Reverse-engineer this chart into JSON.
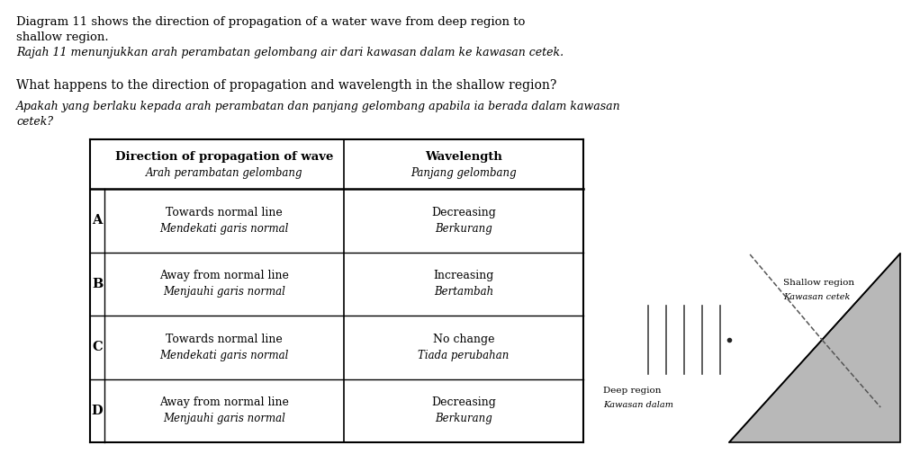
{
  "title_en": "Diagram 11 shows the direction of propagation of a water wave from deep region to\nshallow region.",
  "title_ms": "Rajah 11 menunjukkan arah perambatan gelombang air dari kawasan dalam ke kawasan cetek.",
  "question_en": "What happens to the direction of propagation and wavelength in the shallow region?",
  "question_ms": "Apakah yang berlaku kepada arah perambatan dan panjang gelombang apabila ia berada dalam kawasan\ncetek?",
  "col1_header_en": "Direction of propagation of wave",
  "col1_header_ms": "Arah perambatan gelombang",
  "col2_header_en": "Wavelength",
  "col2_header_ms": "Panjang gelombang",
  "rows": [
    {
      "label": "A",
      "col1_en": "Towards normal line",
      "col1_ms": "Mendekati garis normal",
      "col2_en": "Decreasing",
      "col2_ms": "Berkurang"
    },
    {
      "label": "B",
      "col1_en": "Away from normal line",
      "col1_ms": "Menjauhi garis normal",
      "col2_en": "Increasing",
      "col2_ms": "Bertambah"
    },
    {
      "label": "C",
      "col1_en": "Towards normal line",
      "col1_ms": "Mendekati garis normal",
      "col2_en": "No change",
      "col2_ms": "Tiada perubahan"
    },
    {
      "label": "D",
      "col1_en": "Away from normal line",
      "col1_ms": "Menjauhi garis normal",
      "col2_en": "Decreasing",
      "col2_ms": "Berkurang"
    }
  ],
  "diagram_deep_label_en": "Deep region",
  "diagram_deep_label_ms": "Kawasan dalam",
  "diagram_shallow_label_en": "Shallow region",
  "diagram_shallow_label_ms": "Kawasan cetek",
  "bg_color": "#ffffff",
  "table_line_color": "#000000",
  "diagram_fill_color": "#b8b8b8",
  "text_color": "#000000",
  "wave_color": "#444444",
  "dash_color": "#555555",
  "title_fontsize": 9.5,
  "title_ms_fontsize": 9.0,
  "question_fontsize": 10.0,
  "question_ms_fontsize": 9.0,
  "header_en_fontsize": 9.5,
  "header_ms_fontsize": 8.5,
  "cell_en_fontsize": 9.0,
  "cell_ms_fontsize": 8.5,
  "label_fontsize": 10.5
}
